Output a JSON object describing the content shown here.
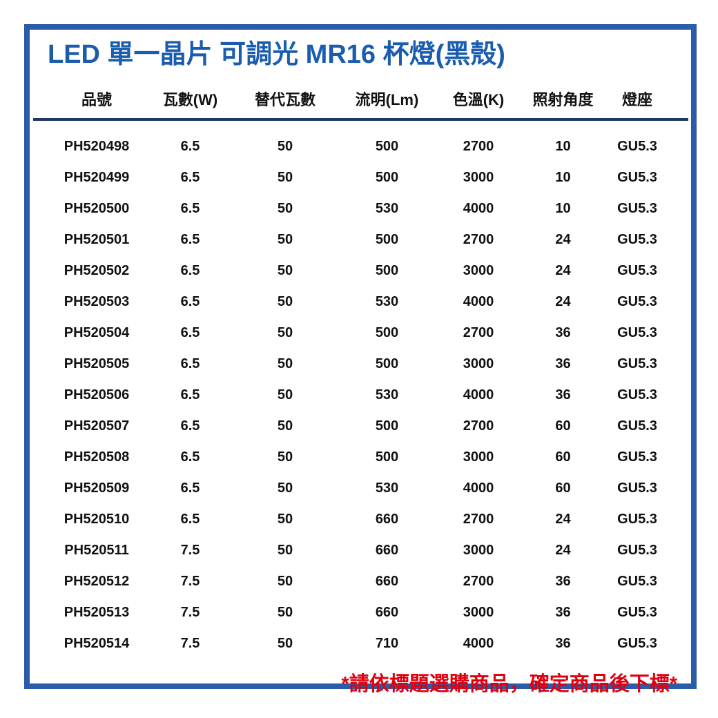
{
  "page": {
    "title": "LED 單一晶片 可調光 MR16 杯燈(黑殼)",
    "footer_note": "*請依標題選購商品，確定商品後下標*"
  },
  "colors": {
    "frame_blue": "#2b5ca8",
    "title_blue": "#1a5dae",
    "header_rule_navy": "#1f3864",
    "footer_red": "#e0000f",
    "text_black": "#111111"
  },
  "table": {
    "columns": [
      "品號",
      "瓦數(W)",
      "替代瓦數",
      "流明(Lm)",
      "色溫(K)",
      "照射角度",
      "燈座"
    ],
    "rows": [
      [
        "PH520498",
        "6.5",
        "50",
        "500",
        "2700",
        "10",
        "GU5.3"
      ],
      [
        "PH520499",
        "6.5",
        "50",
        "500",
        "3000",
        "10",
        "GU5.3"
      ],
      [
        "PH520500",
        "6.5",
        "50",
        "530",
        "4000",
        "10",
        "GU5.3"
      ],
      [
        "PH520501",
        "6.5",
        "50",
        "500",
        "2700",
        "24",
        "GU5.3"
      ],
      [
        "PH520502",
        "6.5",
        "50",
        "500",
        "3000",
        "24",
        "GU5.3"
      ],
      [
        "PH520503",
        "6.5",
        "50",
        "530",
        "4000",
        "24",
        "GU5.3"
      ],
      [
        "PH520504",
        "6.5",
        "50",
        "500",
        "2700",
        "36",
        "GU5.3"
      ],
      [
        "PH520505",
        "6.5",
        "50",
        "500",
        "3000",
        "36",
        "GU5.3"
      ],
      [
        "PH520506",
        "6.5",
        "50",
        "530",
        "4000",
        "36",
        "GU5.3"
      ],
      [
        "PH520507",
        "6.5",
        "50",
        "500",
        "2700",
        "60",
        "GU5.3"
      ],
      [
        "PH520508",
        "6.5",
        "50",
        "500",
        "3000",
        "60",
        "GU5.3"
      ],
      [
        "PH520509",
        "6.5",
        "50",
        "530",
        "4000",
        "60",
        "GU5.3"
      ],
      [
        "PH520510",
        "6.5",
        "50",
        "660",
        "2700",
        "24",
        "GU5.3"
      ],
      [
        "PH520511",
        "7.5",
        "50",
        "660",
        "3000",
        "24",
        "GU5.3"
      ],
      [
        "PH520512",
        "7.5",
        "50",
        "660",
        "2700",
        "36",
        "GU5.3"
      ],
      [
        "PH520513",
        "7.5",
        "50",
        "660",
        "3000",
        "36",
        "GU5.3"
      ],
      [
        "PH520514",
        "7.5",
        "50",
        "710",
        "4000",
        "36",
        "GU5.3"
      ]
    ]
  }
}
